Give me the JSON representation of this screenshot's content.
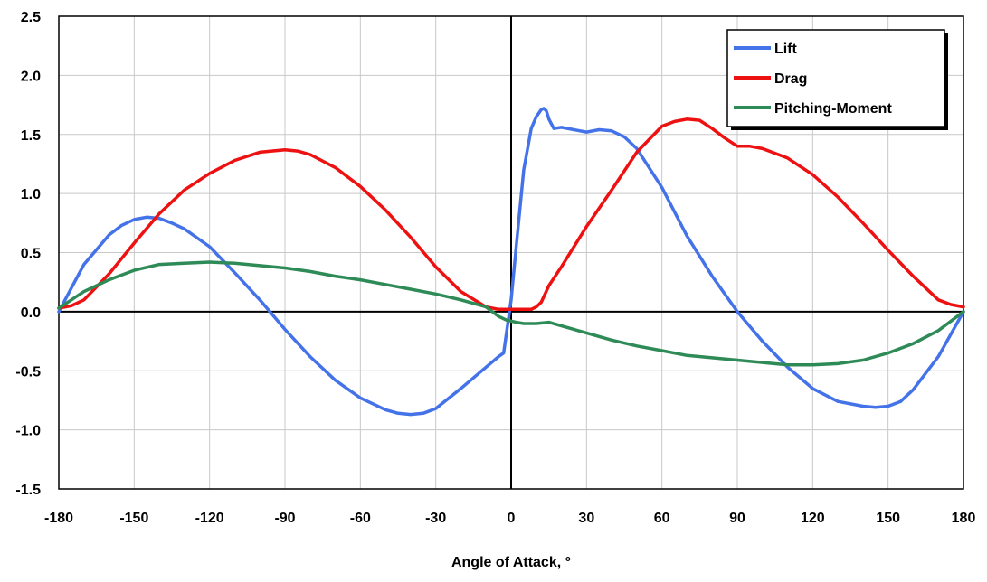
{
  "chart_data": {
    "type": "line",
    "title": "",
    "xlabel": "Angle of Attack, °",
    "ylabel": "",
    "xlim": [
      -180,
      180
    ],
    "ylim": [
      -1.5,
      2.5
    ],
    "xticks": [
      -180,
      -150,
      -120,
      -90,
      -60,
      -30,
      0,
      30,
      60,
      90,
      120,
      150,
      180
    ],
    "yticks": [
      -1.5,
      -1.0,
      -0.5,
      0.0,
      0.5,
      1.0,
      1.5,
      2.0,
      2.5
    ],
    "xtick_labels": [
      "-180",
      "-150",
      "-120",
      "-90",
      "-60",
      "-30",
      "0",
      "30",
      "60",
      "90",
      "120",
      "150",
      "180"
    ],
    "ytick_labels": [
      "-1.5",
      "-1.0",
      "-0.5",
      "0.0",
      "0.5",
      "1.0",
      "1.5",
      "2.0",
      "2.5"
    ],
    "grid": true,
    "legend_position": "top-right",
    "series": [
      {
        "name": "Lift",
        "color": "#4472e8",
        "x": [
          -180,
          -175,
          -170,
          -160,
          -155,
          -150,
          -145,
          -140,
          -135,
          -130,
          -120,
          -110,
          -100,
          -90,
          -80,
          -70,
          -60,
          -50,
          -45,
          -40,
          -35,
          -30,
          -20,
          -10,
          -5,
          -3,
          0,
          2,
          5,
          8,
          10,
          12,
          13,
          14,
          15,
          17,
          20,
          25,
          30,
          35,
          40,
          45,
          50,
          60,
          70,
          80,
          90,
          100,
          110,
          120,
          130,
          140,
          145,
          150,
          155,
          160,
          170,
          180
        ],
        "y": [
          0.0,
          0.2,
          0.4,
          0.65,
          0.73,
          0.78,
          0.8,
          0.79,
          0.75,
          0.7,
          0.55,
          0.33,
          0.1,
          -0.15,
          -0.38,
          -0.58,
          -0.73,
          -0.83,
          -0.86,
          -0.87,
          -0.86,
          -0.82,
          -0.65,
          -0.47,
          -0.38,
          -0.35,
          0.1,
          0.55,
          1.2,
          1.55,
          1.65,
          1.71,
          1.72,
          1.7,
          1.63,
          1.55,
          1.56,
          1.54,
          1.52,
          1.54,
          1.53,
          1.48,
          1.38,
          1.05,
          0.64,
          0.3,
          0.0,
          -0.25,
          -0.47,
          -0.65,
          -0.76,
          -0.8,
          -0.81,
          -0.8,
          -0.76,
          -0.66,
          -0.38,
          0.0
        ]
      },
      {
        "name": "Drag",
        "color": "#ee1111",
        "x": [
          -180,
          -175,
          -170,
          -160,
          -150,
          -140,
          -130,
          -120,
          -110,
          -100,
          -90,
          -85,
          -80,
          -70,
          -60,
          -50,
          -40,
          -30,
          -20,
          -10,
          -5,
          0,
          5,
          8,
          10,
          12,
          15,
          20,
          30,
          40,
          50,
          60,
          65,
          70,
          75,
          80,
          85,
          90,
          95,
          100,
          110,
          120,
          130,
          140,
          150,
          160,
          170,
          175,
          180
        ],
        "y": [
          0.03,
          0.05,
          0.1,
          0.32,
          0.58,
          0.83,
          1.03,
          1.17,
          1.28,
          1.35,
          1.37,
          1.36,
          1.33,
          1.22,
          1.06,
          0.86,
          0.63,
          0.38,
          0.17,
          0.04,
          0.02,
          0.02,
          0.02,
          0.02,
          0.04,
          0.08,
          0.22,
          0.38,
          0.72,
          1.03,
          1.35,
          1.57,
          1.61,
          1.63,
          1.62,
          1.55,
          1.47,
          1.4,
          1.4,
          1.38,
          1.3,
          1.16,
          0.97,
          0.75,
          0.52,
          0.3,
          0.1,
          0.06,
          0.04
        ]
      },
      {
        "name": "Pitching-Moment",
        "color": "#2e8b57",
        "x": [
          -180,
          -175,
          -170,
          -160,
          -150,
          -140,
          -130,
          -120,
          -110,
          -100,
          -90,
          -80,
          -70,
          -60,
          -50,
          -40,
          -30,
          -20,
          -10,
          -5,
          -2,
          0,
          2,
          5,
          10,
          15,
          20,
          30,
          40,
          50,
          60,
          70,
          80,
          90,
          100,
          110,
          120,
          130,
          140,
          150,
          160,
          170,
          180
        ],
        "y": [
          0.03,
          0.1,
          0.17,
          0.27,
          0.35,
          0.4,
          0.41,
          0.42,
          0.41,
          0.39,
          0.37,
          0.34,
          0.3,
          0.27,
          0.23,
          0.19,
          0.15,
          0.1,
          0.04,
          -0.04,
          -0.07,
          -0.08,
          -0.09,
          -0.1,
          -0.1,
          -0.09,
          -0.12,
          -0.18,
          -0.24,
          -0.29,
          -0.33,
          -0.37,
          -0.39,
          -0.41,
          -0.43,
          -0.45,
          -0.45,
          -0.44,
          -0.41,
          -0.35,
          -0.27,
          -0.16,
          0.0
        ]
      }
    ]
  }
}
